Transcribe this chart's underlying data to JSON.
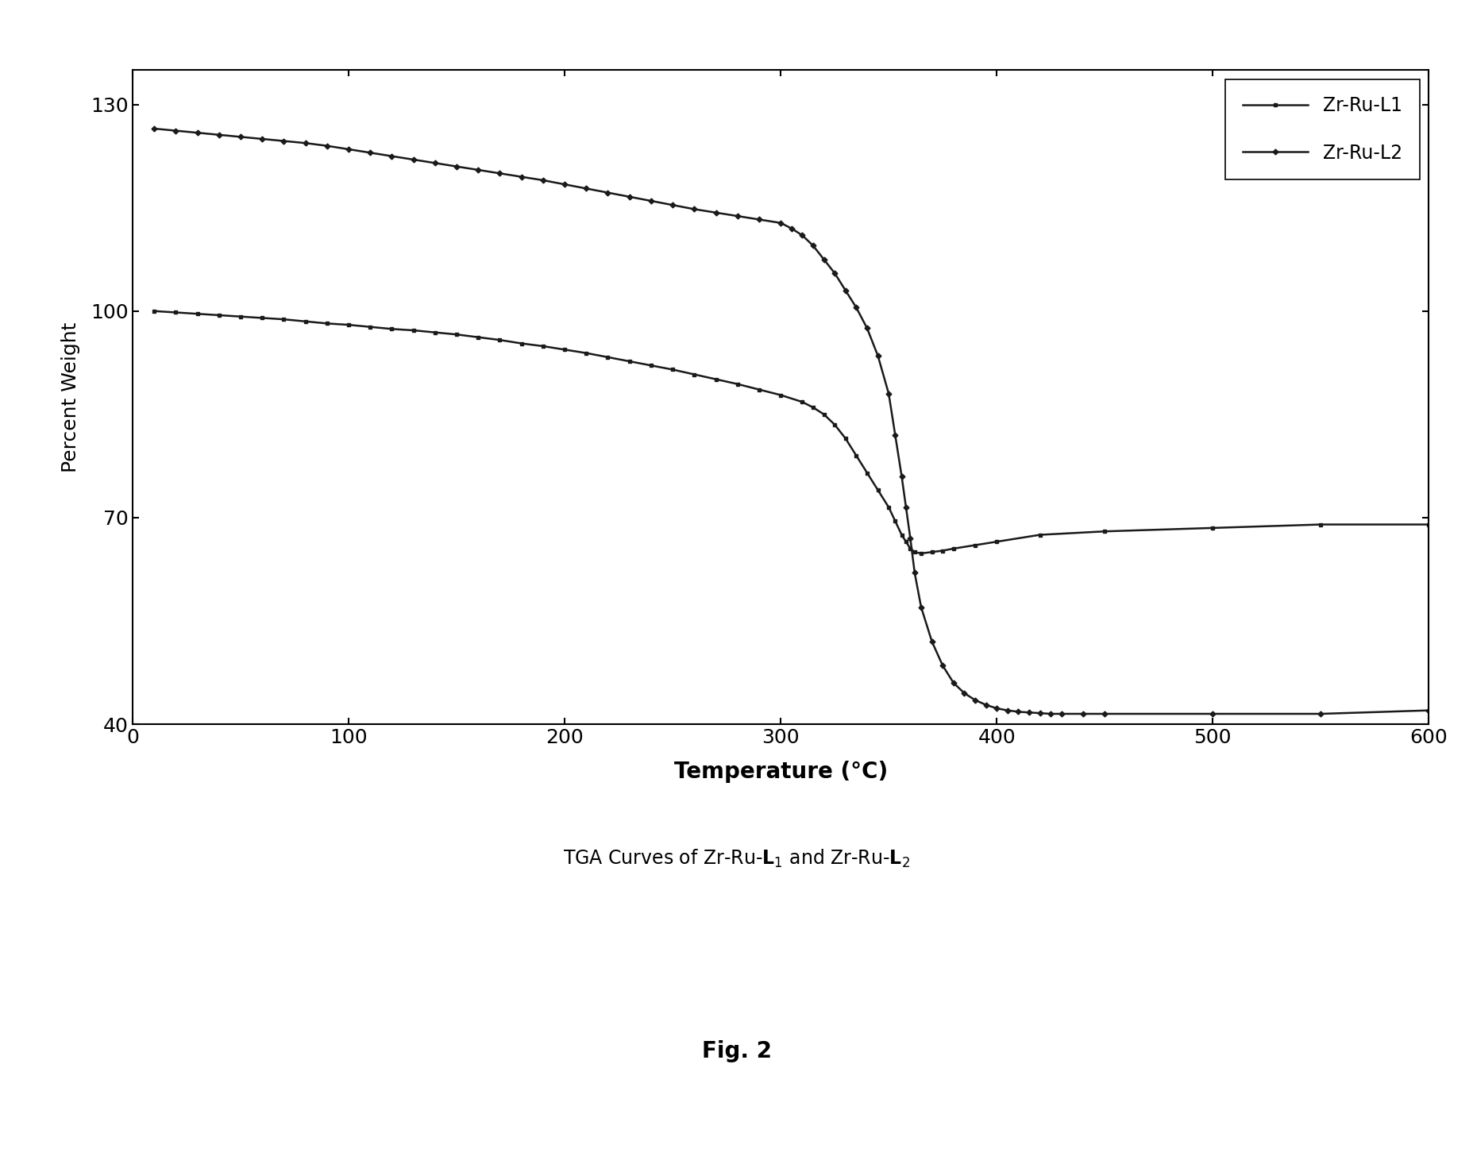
{
  "fig_label": "Fig. 2",
  "xlabel": "Temperature (°C)",
  "ylabel": "Percent Weight",
  "xlim": [
    0,
    600
  ],
  "ylim": [
    40,
    135
  ],
  "yticks": [
    40,
    70,
    100,
    130
  ],
  "xticks": [
    0,
    100,
    200,
    300,
    400,
    500,
    600
  ],
  "legend_labels": [
    "Zr-Ru-L1",
    "Zr-Ru-L2"
  ],
  "line_color": "#1a1a1a",
  "background_color": "#ffffff",
  "series1_x": [
    10,
    20,
    30,
    40,
    50,
    60,
    70,
    80,
    90,
    100,
    110,
    120,
    130,
    140,
    150,
    160,
    170,
    180,
    190,
    200,
    210,
    220,
    230,
    240,
    250,
    260,
    270,
    280,
    290,
    300,
    310,
    315,
    320,
    325,
    330,
    335,
    340,
    345,
    350,
    353,
    356,
    358,
    360,
    362,
    365,
    370,
    375,
    380,
    390,
    400,
    420,
    450,
    500,
    550,
    600
  ],
  "series1_y": [
    100.0,
    99.8,
    99.6,
    99.4,
    99.2,
    99.0,
    98.8,
    98.5,
    98.2,
    98.0,
    97.7,
    97.4,
    97.2,
    96.9,
    96.6,
    96.2,
    95.8,
    95.3,
    94.9,
    94.4,
    93.9,
    93.3,
    92.7,
    92.1,
    91.5,
    90.8,
    90.1,
    89.4,
    88.6,
    87.8,
    86.8,
    86.0,
    85.0,
    83.5,
    81.5,
    79.0,
    76.5,
    74.0,
    71.5,
    69.5,
    67.5,
    66.5,
    65.5,
    65.0,
    64.8,
    65.0,
    65.2,
    65.5,
    66.0,
    66.5,
    67.5,
    68.0,
    68.5,
    69.0,
    69.0
  ],
  "series2_x": [
    10,
    20,
    30,
    40,
    50,
    60,
    70,
    80,
    90,
    100,
    110,
    120,
    130,
    140,
    150,
    160,
    170,
    180,
    190,
    200,
    210,
    220,
    230,
    240,
    250,
    260,
    270,
    280,
    290,
    300,
    305,
    310,
    315,
    320,
    325,
    330,
    335,
    340,
    345,
    350,
    353,
    356,
    358,
    360,
    362,
    365,
    370,
    375,
    380,
    385,
    390,
    395,
    400,
    405,
    410,
    415,
    420,
    425,
    430,
    440,
    450,
    500,
    550,
    600
  ],
  "series2_y": [
    126.5,
    126.2,
    125.9,
    125.6,
    125.3,
    125.0,
    124.7,
    124.4,
    124.0,
    123.5,
    123.0,
    122.5,
    122.0,
    121.5,
    121.0,
    120.5,
    120.0,
    119.5,
    119.0,
    118.4,
    117.8,
    117.2,
    116.6,
    116.0,
    115.4,
    114.8,
    114.3,
    113.8,
    113.3,
    112.8,
    112.0,
    111.0,
    109.5,
    107.5,
    105.5,
    103.0,
    100.5,
    97.5,
    93.5,
    88.0,
    82.0,
    76.0,
    71.5,
    67.0,
    62.0,
    57.0,
    52.0,
    48.5,
    46.0,
    44.5,
    43.5,
    42.8,
    42.3,
    42.0,
    41.8,
    41.7,
    41.6,
    41.5,
    41.5,
    41.5,
    41.5,
    41.5,
    41.5,
    42.0
  ]
}
